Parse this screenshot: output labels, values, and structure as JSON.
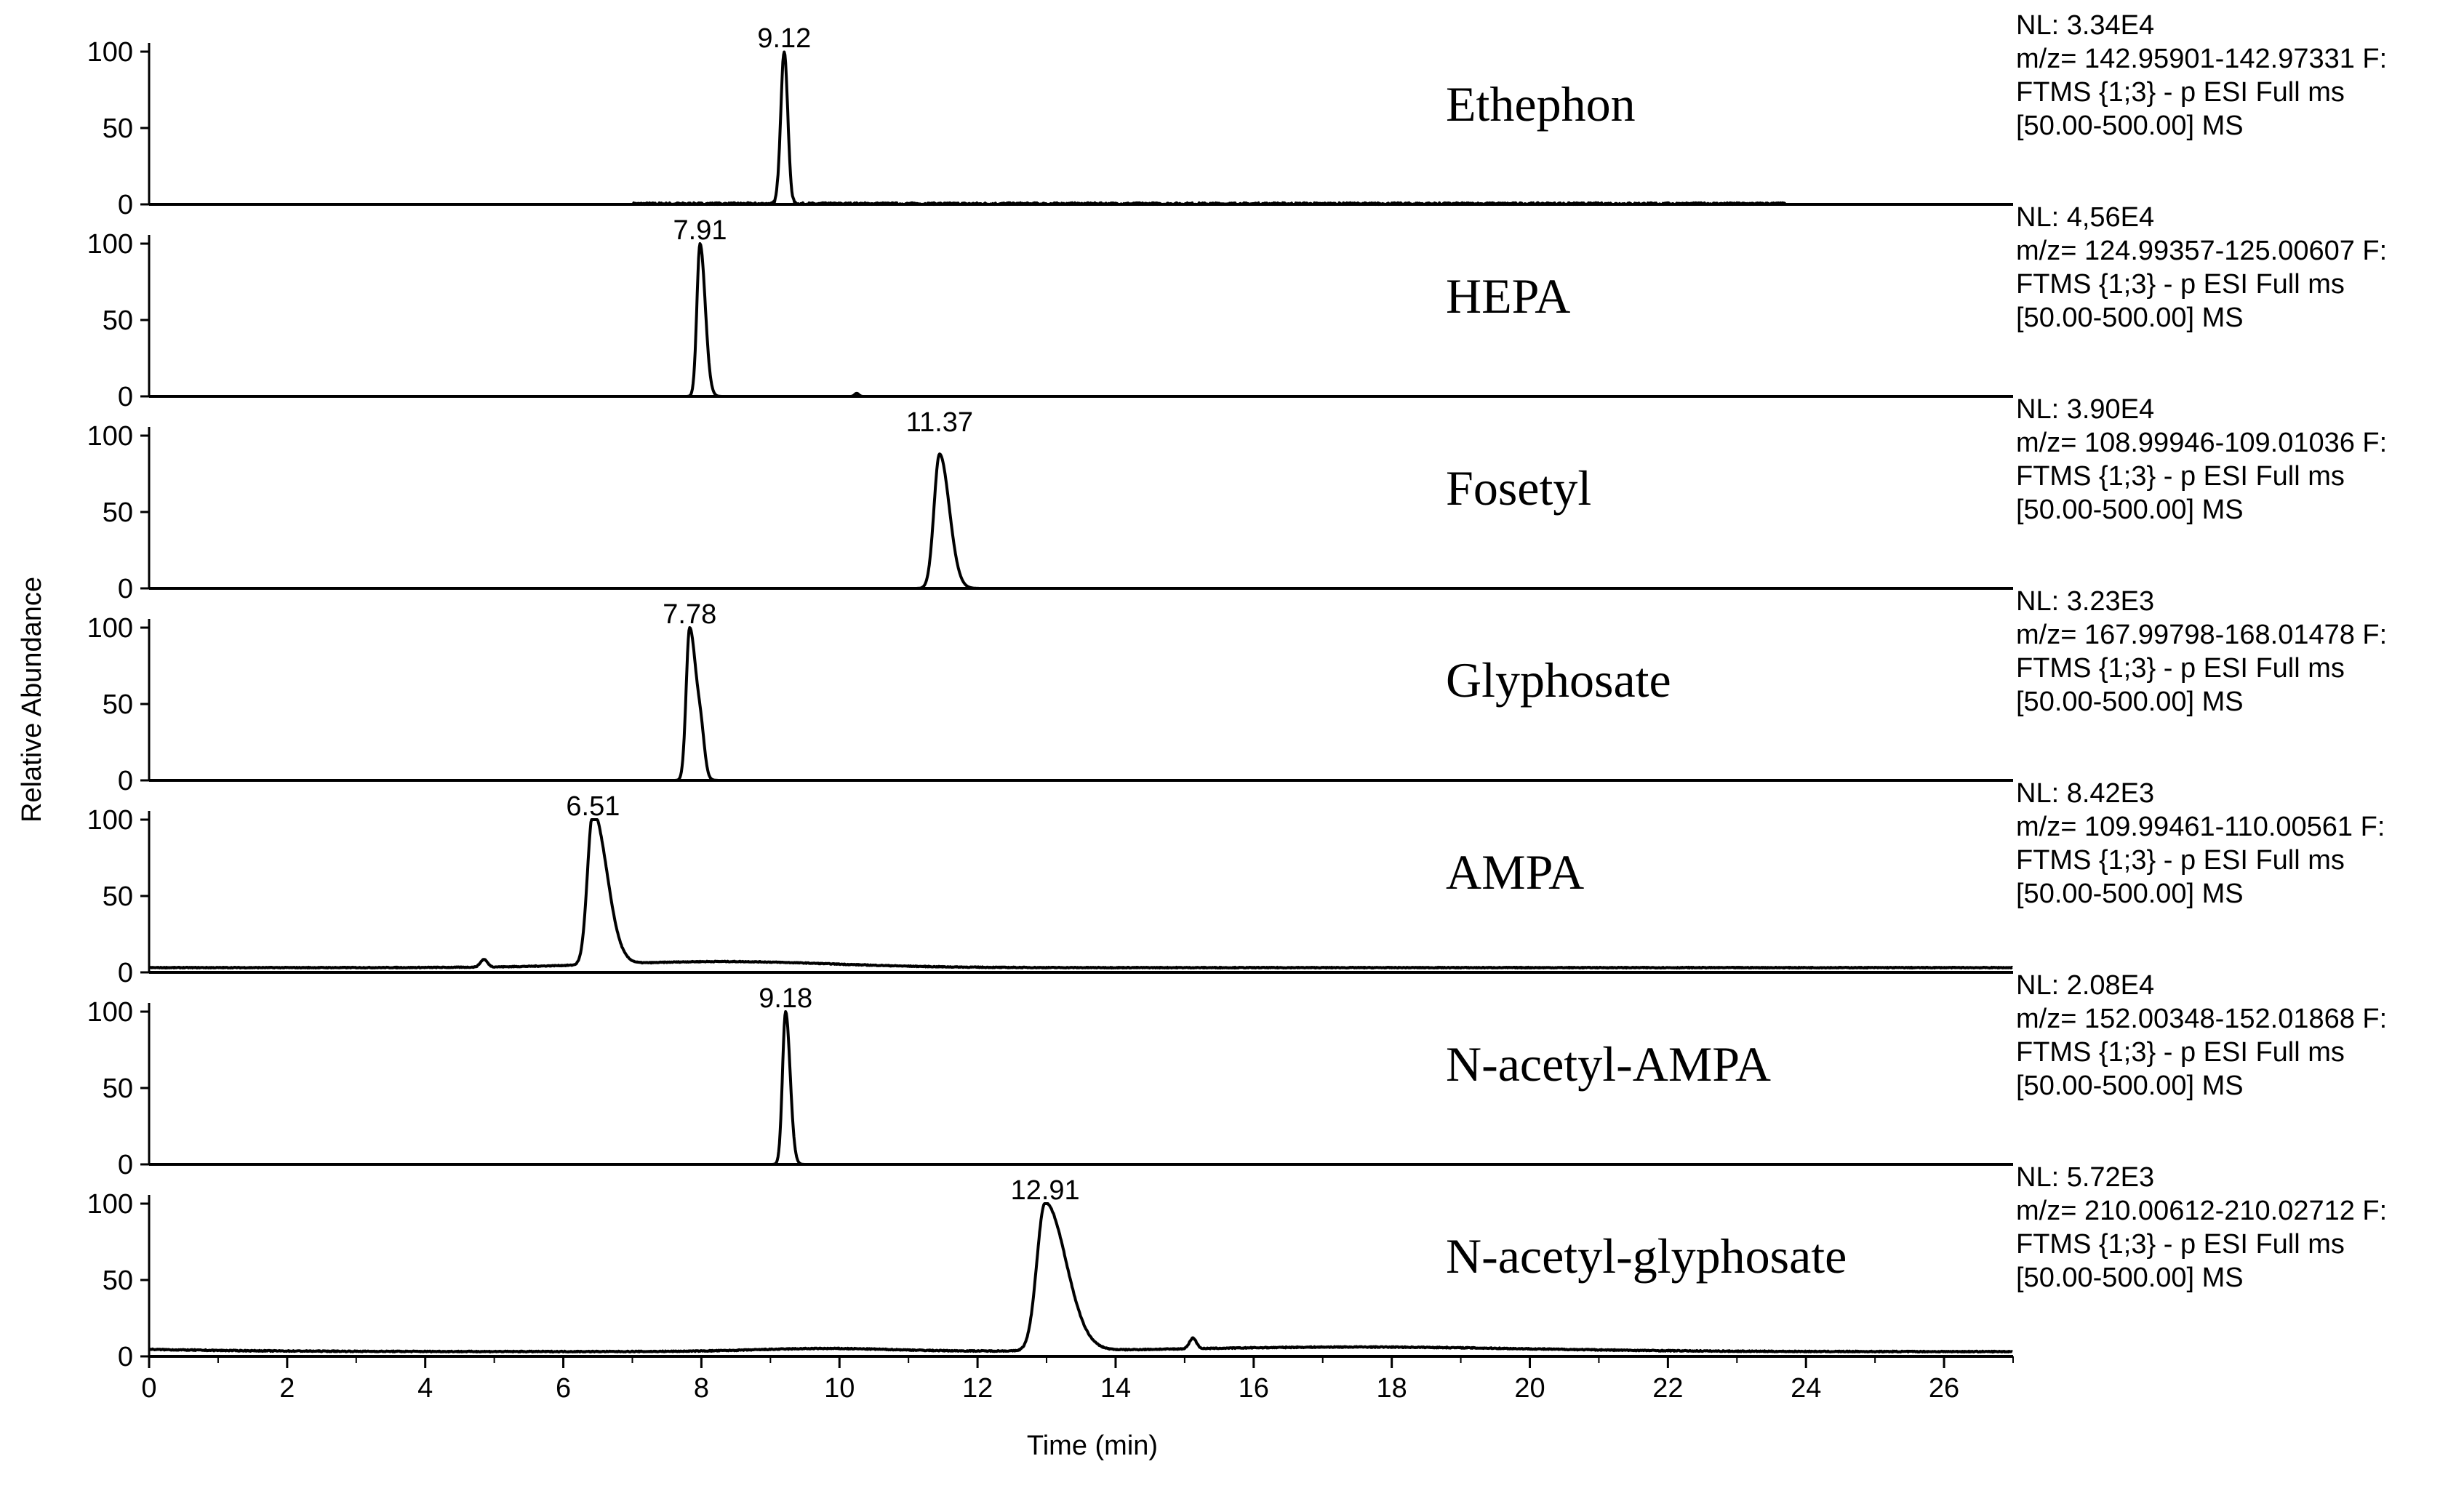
{
  "chart_data": {
    "type": "line",
    "xlabel": "Time (min)",
    "ylabel": "Relative Abundance",
    "xlim": [
      0,
      27
    ],
    "ylim": [
      0,
      100
    ],
    "xticks": [
      0,
      2,
      4,
      6,
      8,
      10,
      12,
      14,
      16,
      18,
      20,
      22,
      24,
      26
    ],
    "yticks": [
      0,
      50,
      100
    ],
    "grid": false,
    "series": [
      {
        "name": "Ethephon",
        "peak_label": "9.12",
        "rt": 9.2,
        "height": 100,
        "width": 0.05,
        "tail": 0,
        "nl": "NL: 3.34E4",
        "mz": "m/z= 142.95901-142.97331 F:",
        "scan": "FTMS {1;3}  - p ESI Full ms",
        "range": "[50.00-500.00]  MS",
        "noise": {
          "from": 7,
          "to": 23.7,
          "level": 1.5
        },
        "baseline": 0,
        "bumps": []
      },
      {
        "name": "HEPA",
        "peak_label": "7.91",
        "rt": 7.98,
        "height": 100,
        "width": 0.045,
        "tail": 0.03,
        "nl": "NL: 4,56E4",
        "mz": "m/z= 124.99357-125.00607 F:",
        "scan": "FTMS {1;3}  - p ESI Full ms",
        "range": "[50.00-500.00]  MS",
        "noise": null,
        "baseline": 0,
        "bumps": [
          {
            "rt": 10.25,
            "height": 2,
            "width": 0.03
          }
        ]
      },
      {
        "name": "Fosetyl",
        "peak_label": "11.37",
        "rt": 11.45,
        "height": 88,
        "width": 0.08,
        "tail": 0.06,
        "nl": "NL: 3.90E4",
        "mz": "m/z= 108.99946-109.01036 F:",
        "scan": "FTMS {1;3}  - p ESI Full ms",
        "range": "[50.00-500.00]  MS",
        "noise": null,
        "baseline": 0,
        "bumps": []
      },
      {
        "name": "Glyphosate",
        "peak_label": "7.78",
        "rt": 7.83,
        "height": 100,
        "width": 0.05,
        "tail": 0.05,
        "nl": "NL: 3.23E3",
        "mz": "m/z= 167.99798-168.01478 F:",
        "scan": "FTMS {1;3}  - p ESI Full ms",
        "range": "[50.00-500.00]  MS",
        "noise": null,
        "baseline": 0,
        "bumps": [
          {
            "rt": 8.0,
            "height": 18,
            "width": 0.05
          }
        ]
      },
      {
        "name": "AMPA",
        "peak_label": "6.51",
        "rt": 6.43,
        "height": 100,
        "width": 0.08,
        "tail": 0.12,
        "nl": "NL: 8.42E3",
        "mz": "m/z= 109.99461-110.00561 F:",
        "scan": "FTMS {1;3}  - p ESI Full ms",
        "range": "[50.00-500.00]  MS",
        "noise": {
          "from": 0,
          "to": 27,
          "level": 0.5
        },
        "baseline": 3,
        "bumps": [
          {
            "rt": 4.85,
            "height": 5,
            "width": 0.05
          },
          {
            "rt": 8.3,
            "height": 4,
            "width": 1.6
          }
        ]
      },
      {
        "name": "N-acetyl-AMPA",
        "peak_label": "9.18",
        "rt": 9.22,
        "height": 100,
        "width": 0.045,
        "tail": 0.02,
        "nl": "NL: 2.08E4",
        "mz": "m/z= 152.00348-152.01868 F:",
        "scan": "FTMS {1;3}  - p ESI Full ms",
        "range": "[50.00-500.00]  MS",
        "noise": null,
        "baseline": 0,
        "bumps": []
      },
      {
        "name": "N-acetyl-glyphosate",
        "peak_label": "12.91",
        "rt": 12.98,
        "height": 97,
        "width": 0.12,
        "tail": 0.18,
        "nl": "NL: 5.72E3",
        "mz": "m/z= 210.00612-210.02712 F:",
        "scan": "FTMS {1;3}  - p ESI Full ms",
        "range": "[50.00-500.00]  MS",
        "noise": {
          "from": 0,
          "to": 27,
          "level": 0.6
        },
        "baseline": 3,
        "bumps": [
          {
            "rt": 15.12,
            "height": 7,
            "width": 0.05
          },
          {
            "rt": 17.5,
            "height": 3,
            "width": 2.5
          },
          {
            "rt": 9.8,
            "height": 2,
            "width": 1
          }
        ]
      }
    ]
  }
}
